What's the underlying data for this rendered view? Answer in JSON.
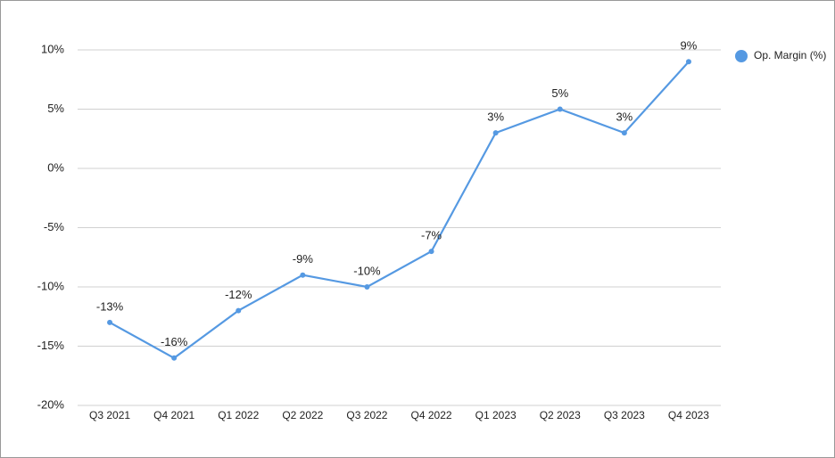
{
  "chart_data": {
    "type": "line",
    "categories": [
      "Q3 2021",
      "Q4 2021",
      "Q1 2022",
      "Q2 2022",
      "Q3 2022",
      "Q4 2022",
      "Q1 2023",
      "Q2 2023",
      "Q3 2023",
      "Q4 2023"
    ],
    "series": [
      {
        "name": "Op. Margin (%)",
        "color": "#5599e2",
        "values": [
          -13,
          -16,
          -12,
          -9,
          -10,
          -7,
          3,
          5,
          3,
          9
        ],
        "value_labels": [
          "-13%",
          "-16%",
          "-12%",
          "-9%",
          "-10%",
          "-7%",
          "3%",
          "5%",
          "3%",
          "9%"
        ]
      }
    ],
    "ylim": [
      -20,
      10
    ],
    "yticks": [
      {
        "value": -20,
        "label": "-20%"
      },
      {
        "value": -15,
        "label": "-15%"
      },
      {
        "value": -10,
        "label": "-10%"
      },
      {
        "value": -5,
        "label": "-5%"
      },
      {
        "value": 0,
        "label": "0%"
      },
      {
        "value": 5,
        "label": "5%"
      },
      {
        "value": 10,
        "label": "10%"
      }
    ],
    "grid": true,
    "legend": "right"
  }
}
